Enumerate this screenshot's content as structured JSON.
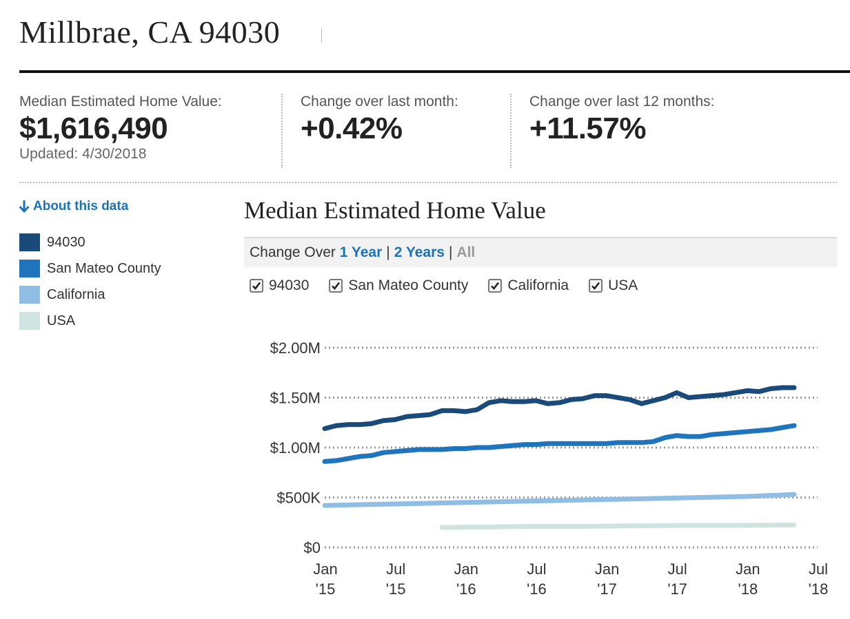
{
  "header": {
    "title": "Millbrae, CA 94030"
  },
  "stats": {
    "median": {
      "label": "Median Estimated Home Value:",
      "value": "$1,616,490",
      "updated": "Updated: 4/30/2018"
    },
    "month": {
      "label": "Change over last month:",
      "value": "+0.42%"
    },
    "year": {
      "label": "Change over last 12 months:",
      "value": "+11.57%"
    }
  },
  "sidebar": {
    "about": "About this data",
    "legend": [
      {
        "label": "94030",
        "color": "#1a4a7a"
      },
      {
        "label": "San Mateo County",
        "color": "#1f74bb"
      },
      {
        "label": "California",
        "color": "#8fbde3"
      },
      {
        "label": "USA",
        "color": "#cfe3e1"
      }
    ]
  },
  "range": {
    "prefix": "Change Over",
    "one_year": "1 Year",
    "two_years": "2 Years",
    "all": "All",
    "sep": "|"
  },
  "checkboxes": [
    "94030",
    "San Mateo County",
    "California",
    "USA"
  ],
  "chart_data": {
    "type": "line",
    "title": "Median Estimated Home Value",
    "x_unit": "months since Jan 2015",
    "xlim": [
      0,
      42
    ],
    "ylim": [
      0,
      2000000
    ],
    "y_ticks": [
      {
        "value": 2000000,
        "label": "$2.00M"
      },
      {
        "value": 1500000,
        "label": "$1.50M"
      },
      {
        "value": 1000000,
        "label": "$1.00M"
      },
      {
        "value": 500000,
        "label": "$500K"
      },
      {
        "value": 0,
        "label": "$0"
      }
    ],
    "x_ticks": [
      {
        "value": 0,
        "month": "Jan",
        "year": "'15"
      },
      {
        "value": 6,
        "month": "Jul",
        "year": "'15"
      },
      {
        "value": 12,
        "month": "Jan",
        "year": "'16"
      },
      {
        "value": 18,
        "month": "Jul",
        "year": "'16"
      },
      {
        "value": 24,
        "month": "Jan",
        "year": "'17"
      },
      {
        "value": 30,
        "month": "Jul",
        "year": "'17"
      },
      {
        "value": 36,
        "month": "Jan",
        "year": "'18"
      },
      {
        "value": 42,
        "month": "Jul",
        "year": "'18"
      }
    ],
    "grid": true,
    "series": [
      {
        "name": "94030",
        "color": "#1a4a7a",
        "x": [
          0,
          1,
          2,
          3,
          4,
          5,
          6,
          7,
          8,
          9,
          10,
          11,
          12,
          13,
          14,
          15,
          16,
          17,
          18,
          19,
          20,
          21,
          22,
          23,
          24,
          25,
          26,
          27,
          28,
          29,
          30,
          31,
          32,
          33,
          34,
          35,
          36,
          37,
          38,
          39,
          40
        ],
        "y": [
          1190000,
          1220000,
          1230000,
          1230000,
          1240000,
          1270000,
          1280000,
          1310000,
          1320000,
          1330000,
          1370000,
          1370000,
          1360000,
          1380000,
          1450000,
          1470000,
          1460000,
          1460000,
          1470000,
          1440000,
          1450000,
          1480000,
          1490000,
          1520000,
          1520000,
          1500000,
          1480000,
          1440000,
          1470000,
          1500000,
          1550000,
          1500000,
          1510000,
          1520000,
          1530000,
          1550000,
          1570000,
          1560000,
          1590000,
          1600000,
          1600000
        ]
      },
      {
        "name": "San Mateo County",
        "color": "#1f74bb",
        "x": [
          0,
          1,
          2,
          3,
          4,
          5,
          6,
          7,
          8,
          9,
          10,
          11,
          12,
          13,
          14,
          15,
          16,
          17,
          18,
          19,
          20,
          21,
          22,
          23,
          24,
          25,
          26,
          27,
          28,
          29,
          30,
          31,
          32,
          33,
          34,
          35,
          36,
          37,
          38,
          39,
          40
        ],
        "y": [
          860000,
          870000,
          890000,
          910000,
          920000,
          950000,
          960000,
          970000,
          980000,
          980000,
          980000,
          990000,
          990000,
          1000000,
          1000000,
          1010000,
          1020000,
          1030000,
          1030000,
          1040000,
          1040000,
          1040000,
          1040000,
          1040000,
          1040000,
          1050000,
          1050000,
          1050000,
          1060000,
          1100000,
          1120000,
          1110000,
          1110000,
          1130000,
          1140000,
          1150000,
          1160000,
          1170000,
          1180000,
          1200000,
          1220000
        ]
      },
      {
        "name": "California",
        "color": "#8fbde3",
        "x": [
          0,
          4,
          8,
          12,
          16,
          20,
          24,
          28,
          32,
          36,
          40
        ],
        "y": [
          420000,
          430000,
          440000,
          450000,
          460000,
          470000,
          480000,
          490000,
          500000,
          510000,
          530000
        ]
      },
      {
        "name": "USA",
        "color": "#cfe3e1",
        "x": [
          10,
          14,
          18,
          22,
          26,
          30,
          34,
          38,
          40
        ],
        "y": [
          200000,
          205000,
          210000,
          210000,
          215000,
          220000,
          220000,
          222000,
          225000
        ]
      }
    ]
  }
}
